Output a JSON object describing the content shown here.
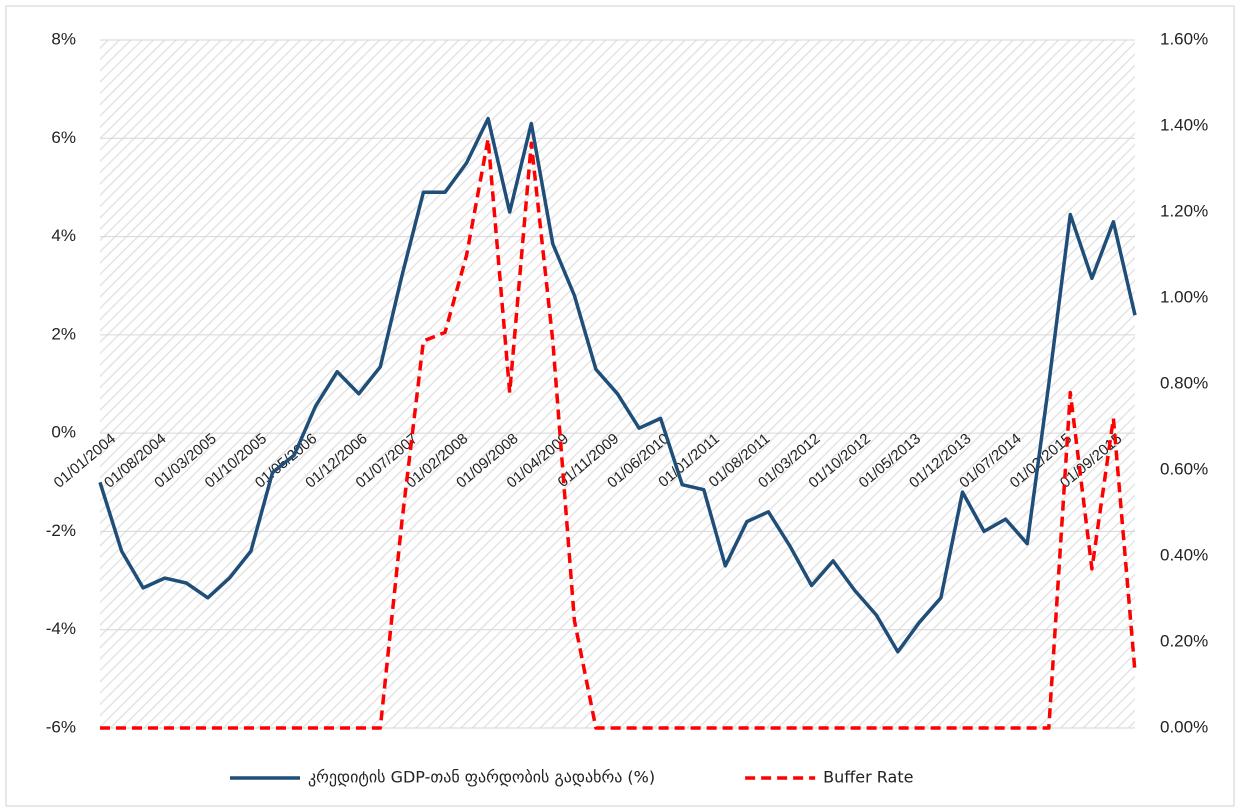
{
  "chart_data": {
    "type": "line",
    "x": [
      "01/01/2004",
      "01/04/2004",
      "01/07/2004",
      "01/10/2004",
      "01/01/2005",
      "01/04/2005",
      "01/07/2005",
      "01/10/2005",
      "01/01/2006",
      "01/04/2006",
      "01/07/2006",
      "01/10/2006",
      "01/01/2007",
      "01/04/2007",
      "01/07/2007",
      "01/10/2007",
      "01/01/2008",
      "01/04/2008",
      "01/07/2008",
      "01/10/2008",
      "01/01/2009",
      "01/04/2009",
      "01/07/2009",
      "01/10/2009",
      "01/01/2010",
      "01/04/2010",
      "01/07/2010",
      "01/10/2010",
      "01/01/2011",
      "01/04/2011",
      "01/07/2011",
      "01/10/2011",
      "01/01/2012",
      "01/04/2012",
      "01/07/2012",
      "01/10/2012",
      "01/01/2013",
      "01/04/2013",
      "01/07/2013",
      "01/10/2013",
      "01/01/2014",
      "01/04/2014",
      "01/07/2014",
      "01/10/2014",
      "01/01/2015",
      "01/04/2015",
      "01/07/2015",
      "01/10/2015",
      "01/01/2016"
    ],
    "xlim": [
      "01/01/2004",
      "01/01/2016"
    ],
    "xticks": [
      "01/01/2004",
      "01/08/2004",
      "01/03/2005",
      "01/10/2005",
      "01/05/2006",
      "01/12/2006",
      "01/07/2007",
      "01/02/2008",
      "01/09/2008",
      "01/04/2009",
      "01/11/2009",
      "01/06/2010",
      "01/01/2011",
      "01/08/2011",
      "01/03/2012",
      "01/10/2012",
      "01/05/2013",
      "01/12/2013",
      "01/07/2014",
      "01/02/2015",
      "01/09/2015"
    ],
    "ylim": [
      -6,
      8
    ],
    "yticks": [
      {
        "value": -6,
        "label": "-6%"
      },
      {
        "value": -4,
        "label": "-4%"
      },
      {
        "value": -2,
        "label": "-2%"
      },
      {
        "value": 0,
        "label": "0%"
      },
      {
        "value": 2,
        "label": "2%"
      },
      {
        "value": 4,
        "label": "4%"
      },
      {
        "value": 6,
        "label": "6%"
      },
      {
        "value": 8,
        "label": "8%"
      }
    ],
    "y2lim": [
      0,
      1.6
    ],
    "y2ticks": [
      {
        "value": 0,
        "label": "0.00%"
      },
      {
        "value": 0.2,
        "label": "0.20%"
      },
      {
        "value": 0.4,
        "label": "0.40%"
      },
      {
        "value": 0.6,
        "label": "0.60%"
      },
      {
        "value": 0.8,
        "label": "0.80%"
      },
      {
        "value": 1.0,
        "label": "1.00%"
      },
      {
        "value": 1.2,
        "label": "1.20%"
      },
      {
        "value": 1.4,
        "label": "1.40%"
      },
      {
        "value": 1.6,
        "label": "1.60%"
      }
    ],
    "grid": true,
    "legend": "bottom",
    "series": [
      {
        "name": "კრედიტის GDP-თან ფარდობის გადახრა (%)",
        "color": "#1f4e79",
        "axis": "y",
        "values": [
          -1.0,
          -2.4,
          -3.15,
          -2.95,
          -3.05,
          -3.35,
          -2.95,
          -2.4,
          -0.8,
          -0.45,
          0.55,
          1.25,
          0.8,
          1.35,
          3.2,
          4.9,
          4.9,
          5.5,
          6.4,
          4.5,
          6.3,
          3.85,
          2.8,
          1.3,
          0.8,
          0.1,
          0.3,
          -1.05,
          -1.15,
          -2.7,
          -1.8,
          -1.6,
          -2.3,
          -3.1,
          -2.6,
          -3.2,
          -3.7,
          -4.45,
          -3.85,
          -3.35,
          -1.2,
          -2.0,
          -1.75,
          -2.25,
          1.0,
          4.45,
          3.15,
          4.3,
          2.4
        ]
      },
      {
        "name": "Buffer Rate",
        "color": "#ff0000",
        "axis": "y2",
        "dashed": true,
        "values": [
          0,
          0,
          0,
          0,
          0,
          0,
          0,
          0,
          0,
          0,
          0,
          0,
          0,
          0,
          0.48,
          0.9,
          0.92,
          1.1,
          1.37,
          0.78,
          1.36,
          0.9,
          0.25,
          0,
          0,
          0,
          0,
          0,
          0,
          0,
          0,
          0,
          0,
          0,
          0,
          0,
          0,
          0,
          0,
          0,
          0,
          0,
          0,
          0,
          0,
          0.78,
          0.37,
          0.72,
          0.13
        ]
      }
    ]
  }
}
